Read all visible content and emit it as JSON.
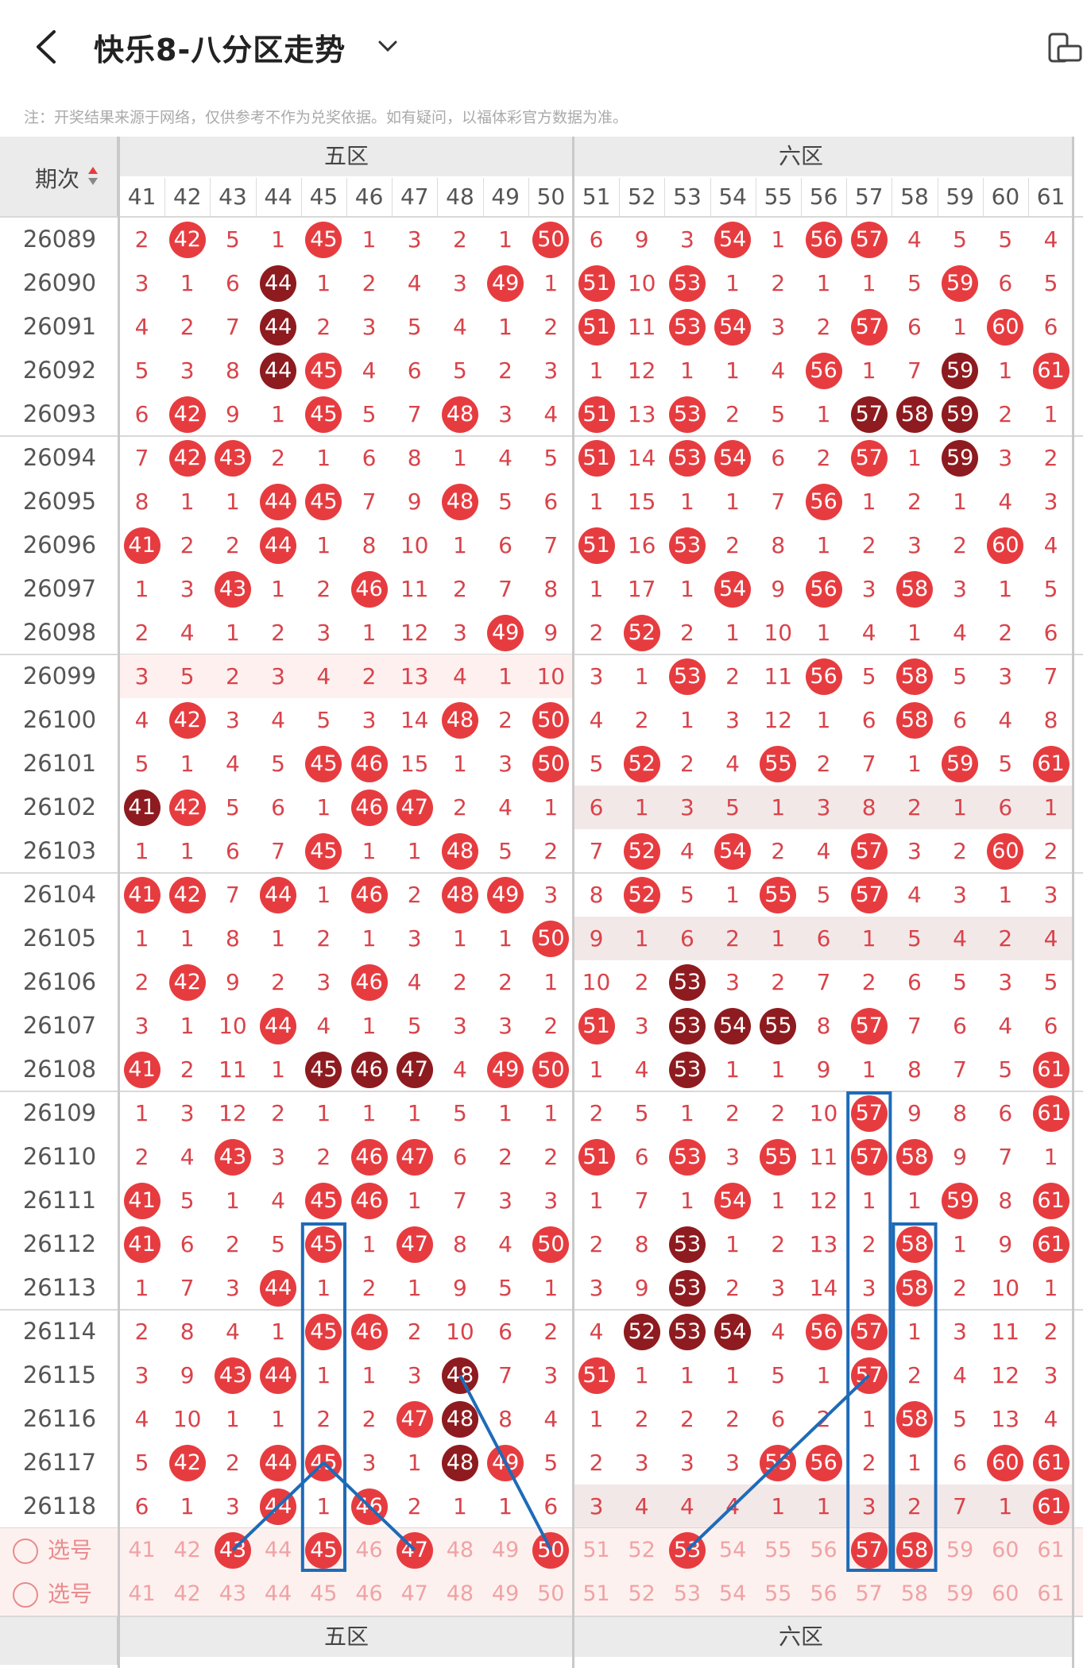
{
  "header": {
    "title": "快乐8-八分区走势",
    "notice": "注：开奖结果来源于网络，仅供参考不作为兑奖依据。如有疑问，以福体彩官方数据为准。"
  },
  "table": {
    "period_header": "期次",
    "zones": [
      "五区",
      "六区"
    ],
    "columns": [
      "41",
      "42",
      "43",
      "44",
      "45",
      "46",
      "47",
      "48",
      "49",
      "50",
      "51",
      "52",
      "53",
      "54",
      "55",
      "56",
      "57",
      "58",
      "59",
      "60",
      "61"
    ],
    "rows": [
      {
        "period": "26089",
        "cells": [
          "2",
          "42",
          "5",
          "1",
          "45",
          "1",
          "3",
          "2",
          "1",
          "50",
          "6",
          "9",
          "3",
          "54",
          "1",
          "56",
          "57",
          "4",
          "5",
          "5",
          "4"
        ]
      },
      {
        "period": "26090",
        "cells": [
          "3",
          "1",
          "6",
          "44",
          "1",
          "2",
          "4",
          "3",
          "49",
          "1",
          "51",
          "10",
          "53",
          "1",
          "2",
          "1",
          "1",
          "5",
          "59",
          "6",
          "5"
        ]
      },
      {
        "period": "26091",
        "cells": [
          "4",
          "2",
          "7",
          "44",
          "2",
          "3",
          "5",
          "4",
          "1",
          "2",
          "51",
          "11",
          "53",
          "54",
          "3",
          "2",
          "57",
          "6",
          "1",
          "60",
          "6"
        ]
      },
      {
        "period": "26092",
        "cells": [
          "5",
          "3",
          "8",
          "44",
          "45",
          "4",
          "6",
          "5",
          "2",
          "3",
          "1",
          "12",
          "1",
          "1",
          "4",
          "56",
          "1",
          "7",
          "59",
          "1",
          "61"
        ]
      },
      {
        "period": "26093",
        "cells": [
          "6",
          "42",
          "9",
          "1",
          "45",
          "5",
          "7",
          "48",
          "3",
          "4",
          "51",
          "13",
          "53",
          "2",
          "5",
          "1",
          "57",
          "58",
          "59",
          "2",
          "1"
        ]
      },
      {
        "period": "26094",
        "cells": [
          "7",
          "42",
          "43",
          "2",
          "1",
          "6",
          "8",
          "1",
          "4",
          "5",
          "51",
          "14",
          "53",
          "54",
          "6",
          "2",
          "57",
          "1",
          "59",
          "3",
          "2"
        ]
      },
      {
        "period": "26095",
        "cells": [
          "8",
          "1",
          "1",
          "44",
          "45",
          "7",
          "9",
          "48",
          "5",
          "6",
          "1",
          "15",
          "1",
          "1",
          "7",
          "56",
          "1",
          "2",
          "1",
          "4",
          "3"
        ]
      },
      {
        "period": "26096",
        "cells": [
          "41",
          "2",
          "2",
          "44",
          "1",
          "8",
          "10",
          "1",
          "6",
          "7",
          "51",
          "16",
          "53",
          "2",
          "8",
          "1",
          "2",
          "3",
          "2",
          "60",
          "4"
        ]
      },
      {
        "period": "26097",
        "cells": [
          "1",
          "3",
          "43",
          "1",
          "2",
          "46",
          "11",
          "2",
          "7",
          "8",
          "1",
          "17",
          "1",
          "54",
          "9",
          "56",
          "3",
          "58",
          "3",
          "1",
          "5"
        ]
      },
      {
        "period": "26098",
        "cells": [
          "2",
          "4",
          "1",
          "2",
          "3",
          "1",
          "12",
          "3",
          "49",
          "9",
          "2",
          "52",
          "2",
          "1",
          "10",
          "1",
          "4",
          "1",
          "4",
          "2",
          "6"
        ]
      },
      {
        "period": "26099",
        "cells": [
          "3",
          "5",
          "2",
          "3",
          "4",
          "2",
          "13",
          "4",
          "1",
          "10",
          "3",
          "1",
          "53",
          "2",
          "11",
          "56",
          "5",
          "58",
          "5",
          "3",
          "7"
        ]
      },
      {
        "period": "26100",
        "cells": [
          "4",
          "42",
          "3",
          "4",
          "5",
          "3",
          "14",
          "48",
          "2",
          "50",
          "4",
          "2",
          "1",
          "3",
          "12",
          "1",
          "6",
          "58",
          "6",
          "4",
          "8"
        ]
      },
      {
        "period": "26101",
        "cells": [
          "5",
          "1",
          "4",
          "5",
          "45",
          "46",
          "15",
          "1",
          "3",
          "50",
          "5",
          "52",
          "2",
          "4",
          "55",
          "2",
          "7",
          "1",
          "59",
          "5",
          "61"
        ]
      },
      {
        "period": "26102",
        "cells": [
          "41",
          "42",
          "5",
          "6",
          "1",
          "46",
          "47",
          "2",
          "4",
          "1",
          "6",
          "1",
          "3",
          "5",
          "1",
          "3",
          "8",
          "2",
          "1",
          "6",
          "1"
        ]
      },
      {
        "period": "26103",
        "cells": [
          "1",
          "1",
          "6",
          "7",
          "45",
          "1",
          "1",
          "48",
          "5",
          "2",
          "7",
          "52",
          "4",
          "54",
          "2",
          "4",
          "57",
          "3",
          "2",
          "60",
          "2"
        ]
      },
      {
        "period": "26104",
        "cells": [
          "41",
          "42",
          "7",
          "44",
          "1",
          "46",
          "2",
          "48",
          "49",
          "3",
          "8",
          "52",
          "5",
          "1",
          "55",
          "5",
          "57",
          "4",
          "3",
          "1",
          "3"
        ]
      },
      {
        "period": "26105",
        "cells": [
          "1",
          "1",
          "8",
          "1",
          "2",
          "1",
          "3",
          "1",
          "1",
          "50",
          "9",
          "1",
          "6",
          "2",
          "1",
          "6",
          "1",
          "5",
          "4",
          "2",
          "4"
        ]
      },
      {
        "period": "26106",
        "cells": [
          "2",
          "42",
          "9",
          "2",
          "3",
          "46",
          "4",
          "2",
          "2",
          "1",
          "10",
          "2",
          "53",
          "3",
          "2",
          "7",
          "2",
          "6",
          "5",
          "3",
          "5"
        ]
      },
      {
        "period": "26107",
        "cells": [
          "3",
          "1",
          "10",
          "44",
          "4",
          "1",
          "5",
          "3",
          "3",
          "2",
          "51",
          "3",
          "53",
          "54",
          "55",
          "8",
          "57",
          "7",
          "6",
          "4",
          "6"
        ]
      },
      {
        "period": "26108",
        "cells": [
          "41",
          "2",
          "11",
          "1",
          "45",
          "46",
          "47",
          "4",
          "49",
          "50",
          "1",
          "4",
          "53",
          "1",
          "1",
          "9",
          "1",
          "8",
          "7",
          "5",
          "61"
        ]
      },
      {
        "period": "26109",
        "cells": [
          "1",
          "3",
          "12",
          "2",
          "1",
          "1",
          "1",
          "5",
          "1",
          "1",
          "2",
          "5",
          "1",
          "2",
          "2",
          "10",
          "57",
          "9",
          "8",
          "6",
          "61"
        ]
      },
      {
        "period": "26110",
        "cells": [
          "2",
          "4",
          "43",
          "3",
          "2",
          "46",
          "47",
          "6",
          "2",
          "2",
          "51",
          "6",
          "53",
          "3",
          "55",
          "11",
          "57",
          "58",
          "9",
          "7",
          "1"
        ]
      },
      {
        "period": "26111",
        "cells": [
          "41",
          "5",
          "1",
          "4",
          "45",
          "46",
          "1",
          "7",
          "3",
          "3",
          "1",
          "7",
          "1",
          "54",
          "1",
          "12",
          "1",
          "1",
          "59",
          "8",
          "61"
        ]
      },
      {
        "period": "26112",
        "cells": [
          "41",
          "6",
          "2",
          "5",
          "45",
          "1",
          "47",
          "8",
          "4",
          "50",
          "2",
          "8",
          "53",
          "1",
          "2",
          "13",
          "2",
          "58",
          "1",
          "9",
          "61"
        ]
      },
      {
        "period": "26113",
        "cells": [
          "1",
          "7",
          "3",
          "44",
          "1",
          "2",
          "1",
          "9",
          "5",
          "1",
          "3",
          "9",
          "53",
          "2",
          "3",
          "14",
          "3",
          "58",
          "2",
          "10",
          "1"
        ]
      },
      {
        "period": "26114",
        "cells": [
          "2",
          "8",
          "4",
          "1",
          "45",
          "46",
          "2",
          "10",
          "6",
          "2",
          "4",
          "52",
          "53",
          "54",
          "4",
          "56",
          "57",
          "1",
          "3",
          "11",
          "2"
        ]
      },
      {
        "period": "26115",
        "cells": [
          "3",
          "9",
          "43",
          "44",
          "1",
          "1",
          "3",
          "48",
          "7",
          "3",
          "51",
          "1",
          "1",
          "1",
          "5",
          "1",
          "57",
          "2",
          "4",
          "12",
          "3"
        ]
      },
      {
        "period": "26116",
        "cells": [
          "4",
          "10",
          "1",
          "1",
          "2",
          "2",
          "47",
          "48",
          "8",
          "4",
          "1",
          "2",
          "2",
          "2",
          "6",
          "2",
          "1",
          "58",
          "5",
          "13",
          "4"
        ]
      },
      {
        "period": "26117",
        "cells": [
          "5",
          "42",
          "2",
          "44",
          "45",
          "3",
          "1",
          "48",
          "49",
          "5",
          "2",
          "3",
          "3",
          "3",
          "55",
          "56",
          "2",
          "1",
          "6",
          "60",
          "61"
        ]
      },
      {
        "period": "26118",
        "cells": [
          "6",
          "1",
          "3",
          "44",
          "1",
          "46",
          "2",
          "1",
          "1",
          "6",
          "3",
          "4",
          "4",
          "4",
          "1",
          "1",
          "3",
          "2",
          "7",
          "1",
          "61"
        ]
      }
    ],
    "dark_balls": [
      "26090-44",
      "26091-44",
      "26092-44",
      "26093-57",
      "26093-58",
      "26093-59",
      "26094-59",
      "26092-59",
      "26102-41",
      "26106-53",
      "26107-53",
      "26107-54",
      "26107-55",
      "26108-45",
      "26108-46",
      "26108-47",
      "26108-53",
      "26112-53",
      "26113-53",
      "26114-52",
      "26114-53",
      "26114-54",
      "26115-48",
      "26116-48",
      "26117-48"
    ],
    "pick_label": "选号",
    "pick_rows": [
      {
        "label": "选号",
        "selected": [
          "43",
          "45",
          "47",
          "50",
          "53",
          "57",
          "58"
        ]
      },
      {
        "label": "选号",
        "selected": []
      }
    ]
  },
  "colors": {
    "ball_red": "#e63c40",
    "ball_dark": "#8e1b1f",
    "miss_text": "#d9434a",
    "highlight_box": "#1e6bb8"
  }
}
